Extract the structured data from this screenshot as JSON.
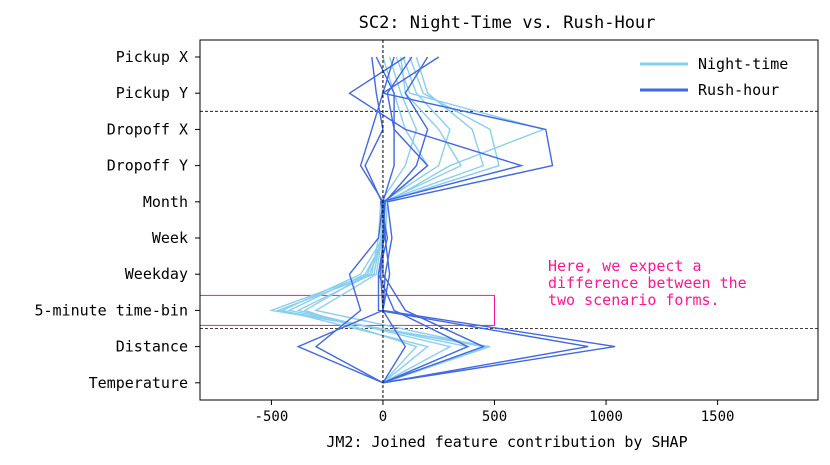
{
  "chart_data": {
    "type": "line",
    "title": "SC2: Night-Time vs. Rush-Hour",
    "xlabel": "JM2: Joined feature contribution by SHAP",
    "ylabel": "",
    "xlim": [
      -820,
      1950
    ],
    "xticks": [
      -500,
      0,
      500,
      1000,
      1500
    ],
    "xtick_labels": [
      "-500",
      "0",
      "500",
      "1000",
      "1500"
    ],
    "categories": [
      "Pickup X",
      "Pickup Y",
      "Dropoff X",
      "Dropoff Y",
      "Month",
      "Week",
      "Weekday",
      "5-minute time-bin",
      "Distance",
      "Temperature"
    ],
    "grid": false,
    "legend": {
      "position": "top-right",
      "entries": [
        {
          "label": "Night-time",
          "color": "#89CFF0"
        },
        {
          "label": "Rush-hour",
          "color": "#4169E1"
        }
      ]
    },
    "vline_x": 0,
    "dashed_separators_after": [
      1,
      7
    ],
    "annotation": {
      "text_lines": [
        "Here, we expect a",
        "difference between the",
        "two scenario forms."
      ],
      "color": "#FF1493",
      "box_x_range": [
        -820,
        500
      ],
      "box_category": "5-minute time-bin"
    },
    "series": [
      {
        "group": "Night-time",
        "color": "#89CFF0",
        "values": [
          120,
          180,
          480,
          520,
          10,
          5,
          -60,
          -500,
          480,
          0
        ]
      },
      {
        "group": "Night-time",
        "color": "#89CFF0",
        "values": [
          90,
          150,
          300,
          250,
          0,
          -10,
          -40,
          -470,
          450,
          0
        ]
      },
      {
        "group": "Night-time",
        "color": "#89CFF0",
        "values": [
          60,
          120,
          720,
          300,
          20,
          10,
          -80,
          -420,
          380,
          0
        ]
      },
      {
        "group": "Night-time",
        "color": "#89CFF0",
        "values": [
          30,
          80,
          150,
          100,
          -10,
          -20,
          -50,
          -380,
          300,
          0
        ]
      },
      {
        "group": "Night-time",
        "color": "#89CFF0",
        "values": [
          150,
          200,
          400,
          450,
          0,
          0,
          -100,
          -450,
          200,
          0
        ]
      },
      {
        "group": "Night-time",
        "color": "#89CFF0",
        "values": [
          0,
          50,
          100,
          200,
          10,
          -5,
          -30,
          -300,
          460,
          0
        ]
      },
      {
        "group": "Night-time",
        "color": "#89CFF0",
        "values": [
          80,
          100,
          250,
          350,
          5,
          0,
          -70,
          -350,
          150,
          0
        ]
      },
      {
        "group": "Rush-hour",
        "color": "#4169E1",
        "values": [
          250,
          0,
          730,
          760,
          20,
          40,
          10,
          0,
          1040,
          0
        ]
      },
      {
        "group": "Rush-hour",
        "color": "#4169E1",
        "values": [
          100,
          -150,
          100,
          620,
          -10,
          20,
          -20,
          -20,
          920,
          0
        ]
      },
      {
        "group": "Rush-hour",
        "color": "#4169E1",
        "values": [
          -30,
          50,
          50,
          50,
          0,
          10,
          30,
          0,
          -380,
          0
        ]
      },
      {
        "group": "Rush-hour",
        "color": "#4169E1",
        "values": [
          50,
          0,
          -50,
          -100,
          0,
          -20,
          -150,
          -100,
          -300,
          0
        ]
      },
      {
        "group": "Rush-hour",
        "color": "#4169E1",
        "values": [
          200,
          100,
          200,
          150,
          10,
          0,
          0,
          100,
          450,
          0
        ]
      },
      {
        "group": "Rush-hour",
        "color": "#4169E1",
        "values": [
          -50,
          -30,
          0,
          -80,
          -5,
          5,
          -20,
          50,
          380,
          0
        ]
      },
      {
        "group": "Rush-hour",
        "color": "#4169E1",
        "values": [
          130,
          20,
          50,
          200,
          5,
          0,
          -10,
          0,
          100,
          0
        ]
      }
    ]
  }
}
